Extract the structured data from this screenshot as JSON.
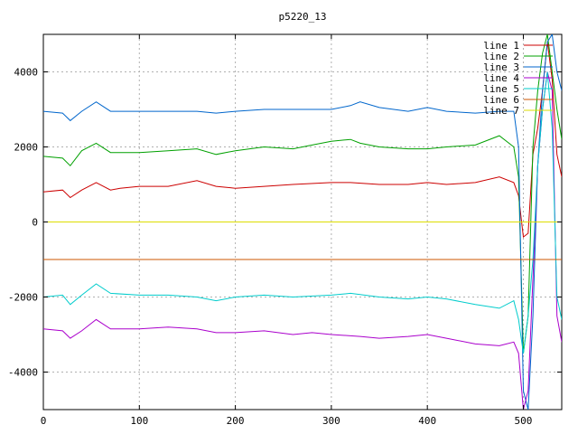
{
  "chart_data": {
    "type": "line",
    "title": "p5220_13",
    "xlabel": "",
    "ylabel": "",
    "xlim": [
      0,
      540
    ],
    "ylim": [
      -5000,
      5000
    ],
    "xticks": [
      0,
      100,
      200,
      300,
      400,
      500
    ],
    "yticks": [
      -4000,
      -2000,
      0,
      2000,
      4000
    ],
    "grid": true,
    "legend_position": "top-right",
    "series": [
      {
        "name": "line 1",
        "color": "#cc0000",
        "x": [
          0,
          20,
          28,
          40,
          55,
          70,
          80,
          100,
          130,
          160,
          180,
          200,
          230,
          260,
          300,
          320,
          350,
          380,
          400,
          420,
          450,
          475,
          490,
          495,
          500,
          505,
          510,
          515,
          520,
          525,
          530,
          535,
          540
        ],
        "y": [
          800,
          850,
          650,
          850,
          1050,
          850,
          900,
          950,
          950,
          1100,
          950,
          900,
          950,
          1000,
          1050,
          1050,
          1000,
          1000,
          1050,
          1000,
          1050,
          1200,
          1050,
          700,
          -400,
          -300,
          1800,
          2500,
          3500,
          4800,
          3800,
          1800,
          1200
        ]
      },
      {
        "name": "line 2",
        "color": "#00a000",
        "x": [
          0,
          20,
          28,
          40,
          55,
          70,
          100,
          130,
          160,
          180,
          200,
          230,
          260,
          280,
          300,
          320,
          330,
          350,
          380,
          400,
          420,
          450,
          475,
          490,
          495,
          500,
          505,
          510,
          515,
          520,
          525,
          530,
          535,
          540
        ],
        "y": [
          1750,
          1700,
          1500,
          1900,
          2100,
          1850,
          1850,
          1900,
          1950,
          1800,
          1900,
          2000,
          1950,
          2050,
          2150,
          2200,
          2100,
          2000,
          1950,
          1950,
          2000,
          2050,
          2300,
          2000,
          1200,
          -3500,
          -2500,
          2000,
          3500,
          4500,
          5000,
          4000,
          3000,
          2200
        ]
      },
      {
        "name": "line 3",
        "color": "#0066cc",
        "x": [
          0,
          20,
          28,
          40,
          55,
          70,
          100,
          130,
          160,
          180,
          200,
          230,
          260,
          300,
          320,
          330,
          350,
          380,
          400,
          420,
          450,
          475,
          490,
          495,
          500,
          505,
          510,
          515,
          520,
          525,
          530,
          535,
          540
        ],
        "y": [
          2950,
          2900,
          2700,
          2950,
          3200,
          2950,
          2950,
          2950,
          2950,
          2900,
          2950,
          3000,
          3000,
          3000,
          3100,
          3200,
          3050,
          2950,
          3050,
          2950,
          2900,
          2950,
          2950,
          2000,
          -4500,
          -5000,
          -2500,
          1500,
          3500,
          4800,
          5000,
          4000,
          3500
        ]
      },
      {
        "name": "line 4",
        "color": "#aa00cc",
        "x": [
          0,
          20,
          28,
          40,
          55,
          70,
          100,
          130,
          160,
          180,
          200,
          230,
          260,
          280,
          300,
          330,
          350,
          380,
          400,
          420,
          450,
          475,
          490,
          495,
          500,
          505,
          510,
          515,
          520,
          525,
          530,
          535,
          540
        ],
        "y": [
          -2850,
          -2900,
          -3100,
          -2900,
          -2600,
          -2850,
          -2850,
          -2800,
          -2850,
          -2950,
          -2950,
          -2900,
          -3000,
          -2950,
          -3000,
          -3050,
          -3100,
          -3050,
          -3000,
          -3100,
          -3250,
          -3300,
          -3200,
          -3500,
          -5000,
          -4500,
          -1500,
          1500,
          3000,
          4000,
          3500,
          -2500,
          -3200
        ]
      },
      {
        "name": "line 5",
        "color": "#00cccc",
        "x": [
          0,
          20,
          28,
          40,
          55,
          70,
          100,
          130,
          160,
          180,
          200,
          230,
          260,
          300,
          320,
          350,
          380,
          400,
          420,
          450,
          475,
          490,
          495,
          500,
          505,
          510,
          515,
          520,
          525,
          530,
          535,
          540
        ],
        "y": [
          -2000,
          -1950,
          -2200,
          -1950,
          -1650,
          -1900,
          -1950,
          -1950,
          -2000,
          -2100,
          -2000,
          -1950,
          -2000,
          -1950,
          -1900,
          -2000,
          -2050,
          -2000,
          -2050,
          -2200,
          -2300,
          -2100,
          -2600,
          -3500,
          -2500,
          -1000,
          1500,
          3000,
          4000,
          2500,
          -2000,
          -2600
        ]
      },
      {
        "name": "line 6",
        "color": "#cc5500",
        "x": [
          0,
          540
        ],
        "y": [
          -1000,
          -1000
        ]
      },
      {
        "name": "line 7",
        "color": "#dddd00",
        "x": [
          0,
          540
        ],
        "y": [
          0,
          0
        ]
      }
    ]
  }
}
